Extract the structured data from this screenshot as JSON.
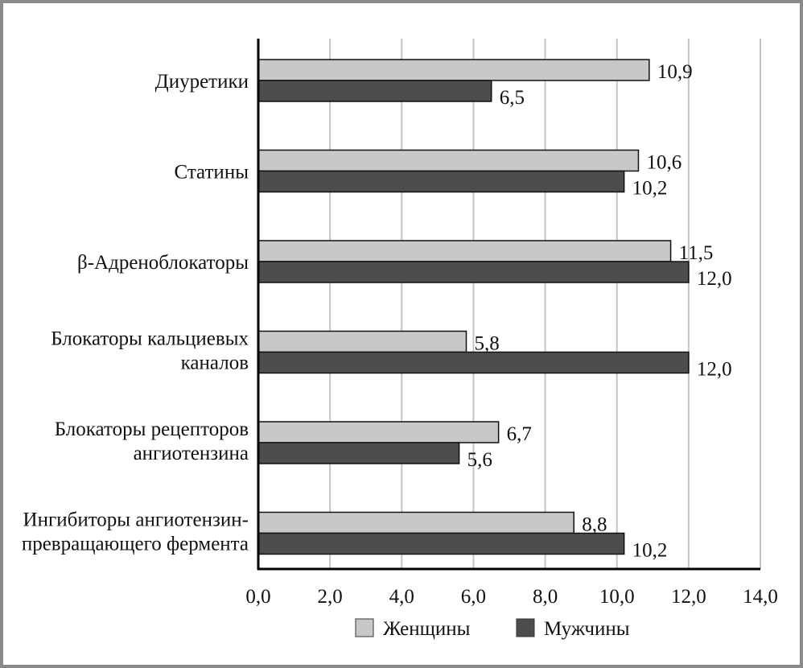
{
  "chart_data": {
    "type": "bar",
    "orientation": "horizontal",
    "categories": [
      [
        "Диуретики"
      ],
      [
        "Статины"
      ],
      [
        "β-Адреноблокаторы"
      ],
      [
        "Блокаторы кальциевых",
        "каналов"
      ],
      [
        "Блокаторы рецепторов",
        "ангиотензина"
      ],
      [
        "Ингибиторы ангиотензин-",
        "превращающего фермента"
      ]
    ],
    "series": [
      {
        "name": "Женщины",
        "color": "#c8c8c8",
        "values": [
          10.9,
          10.6,
          11.5,
          5.8,
          6.7,
          8.8
        ],
        "labels": [
          "10,9",
          "10,6",
          "11,5",
          "5,8",
          "6,7",
          "8,8"
        ]
      },
      {
        "name": "Мужчины",
        "color": "#4d4d4f",
        "values": [
          6.5,
          10.2,
          12.0,
          12.0,
          5.6,
          10.2
        ],
        "labels": [
          "6,5",
          "10,2",
          "12,0",
          "12,0",
          "5,6",
          "10,2"
        ]
      }
    ],
    "xlim": [
      0,
      14
    ],
    "xticks": [
      0,
      2,
      4,
      6,
      8,
      10,
      12,
      14
    ],
    "xtick_labels": [
      "0,0",
      "2,0",
      "4,0",
      "6,0",
      "8,0",
      "10,0",
      "12,0",
      "14,0"
    ],
    "grid": true,
    "legend": "bottom"
  }
}
